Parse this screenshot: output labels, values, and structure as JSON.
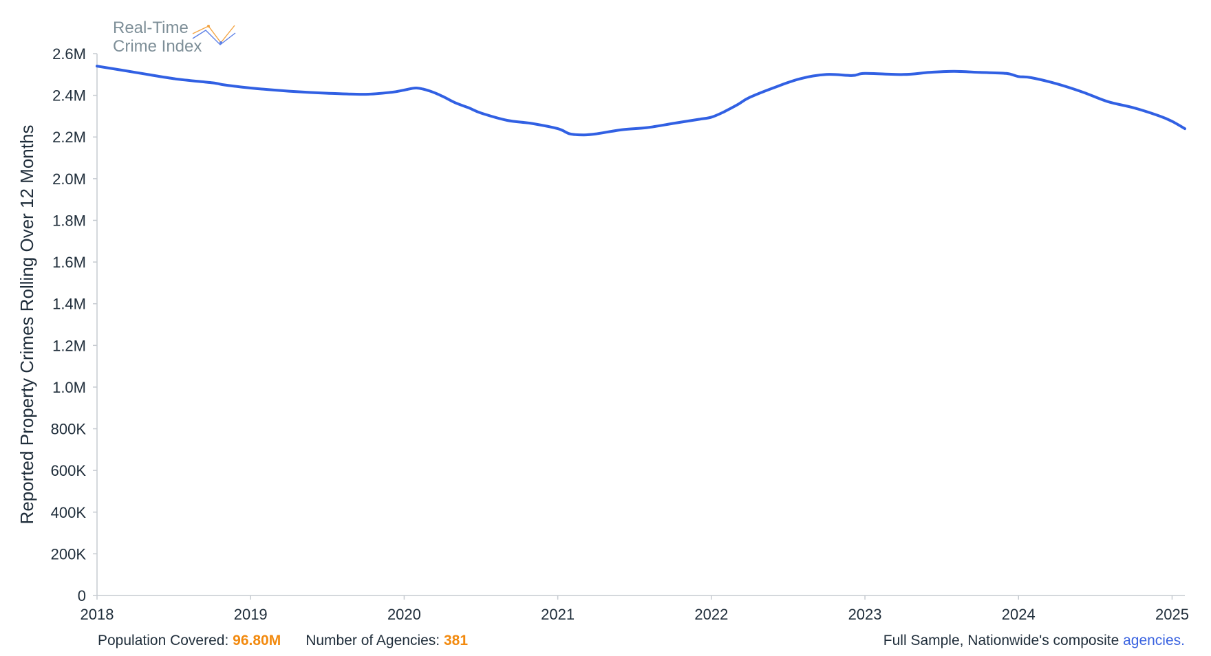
{
  "logo": {
    "line1": "Real-Time",
    "line2": "Crime Index",
    "colors": {
      "text": "#7e8f98",
      "accent_orange": "#f3a443",
      "accent_blue": "#5b7fe6"
    }
  },
  "chart_data": {
    "type": "line",
    "title": "",
    "xlabel": "",
    "ylabel": "Reported Property Crimes Rolling Over 12 Months",
    "ylim": [
      0,
      2600000
    ],
    "yticks": [
      {
        "value": 0,
        "label": "0"
      },
      {
        "value": 200000,
        "label": "200K"
      },
      {
        "value": 400000,
        "label": "400K"
      },
      {
        "value": 600000,
        "label": "600K"
      },
      {
        "value": 800000,
        "label": "800K"
      },
      {
        "value": 1000000,
        "label": "1.0M"
      },
      {
        "value": 1200000,
        "label": "1.2M"
      },
      {
        "value": 1400000,
        "label": "1.4M"
      },
      {
        "value": 1600000,
        "label": "1.6M"
      },
      {
        "value": 1800000,
        "label": "1.8M"
      },
      {
        "value": 2000000,
        "label": "2.0M"
      },
      {
        "value": 2200000,
        "label": "2.2M"
      },
      {
        "value": 2400000,
        "label": "2.4M"
      },
      {
        "value": 2600000,
        "label": "2.6M"
      }
    ],
    "xlim": [
      2018.0,
      2025.083
    ],
    "xticks": [
      {
        "value": 2018,
        "label": "2018"
      },
      {
        "value": 2019,
        "label": "2019"
      },
      {
        "value": 2020,
        "label": "2020"
      },
      {
        "value": 2021,
        "label": "2021"
      },
      {
        "value": 2022,
        "label": "2022"
      },
      {
        "value": 2023,
        "label": "2023"
      },
      {
        "value": 2024,
        "label": "2024"
      },
      {
        "value": 2025,
        "label": "2025"
      }
    ],
    "grid": false,
    "series": [
      {
        "color": "#3160e3",
        "points": [
          [
            2018.0,
            2540000
          ],
          [
            2018.25,
            2510000
          ],
          [
            2018.5,
            2480000
          ],
          [
            2018.75,
            2460000
          ],
          [
            2018.83,
            2450000
          ],
          [
            2019.0,
            2435000
          ],
          [
            2019.25,
            2420000
          ],
          [
            2019.5,
            2410000
          ],
          [
            2019.75,
            2405000
          ],
          [
            2019.92,
            2415000
          ],
          [
            2020.0,
            2425000
          ],
          [
            2020.08,
            2435000
          ],
          [
            2020.17,
            2420000
          ],
          [
            2020.25,
            2395000
          ],
          [
            2020.33,
            2365000
          ],
          [
            2020.42,
            2340000
          ],
          [
            2020.5,
            2315000
          ],
          [
            2020.67,
            2280000
          ],
          [
            2020.83,
            2265000
          ],
          [
            2021.0,
            2240000
          ],
          [
            2021.08,
            2215000
          ],
          [
            2021.17,
            2210000
          ],
          [
            2021.25,
            2215000
          ],
          [
            2021.42,
            2235000
          ],
          [
            2021.58,
            2245000
          ],
          [
            2021.75,
            2265000
          ],
          [
            2021.92,
            2285000
          ],
          [
            2022.0,
            2295000
          ],
          [
            2022.08,
            2320000
          ],
          [
            2022.17,
            2355000
          ],
          [
            2022.25,
            2390000
          ],
          [
            2022.42,
            2440000
          ],
          [
            2022.58,
            2480000
          ],
          [
            2022.75,
            2500000
          ],
          [
            2022.92,
            2495000
          ],
          [
            2023.0,
            2505000
          ],
          [
            2023.25,
            2500000
          ],
          [
            2023.42,
            2510000
          ],
          [
            2023.58,
            2515000
          ],
          [
            2023.75,
            2510000
          ],
          [
            2023.92,
            2505000
          ],
          [
            2024.0,
            2490000
          ],
          [
            2024.08,
            2485000
          ],
          [
            2024.25,
            2455000
          ],
          [
            2024.42,
            2415000
          ],
          [
            2024.58,
            2370000
          ],
          [
            2024.75,
            2340000
          ],
          [
            2024.92,
            2300000
          ],
          [
            2025.0,
            2275000
          ],
          [
            2025.083,
            2240000
          ]
        ]
      }
    ]
  },
  "footer": {
    "population_label": "Population Covered: ",
    "population_value": "96.80M",
    "agencies_label": "Number of Agencies: ",
    "agencies_value": "381",
    "sample_text": "Full Sample, Nationwide's composite ",
    "sample_link": "agencies."
  }
}
